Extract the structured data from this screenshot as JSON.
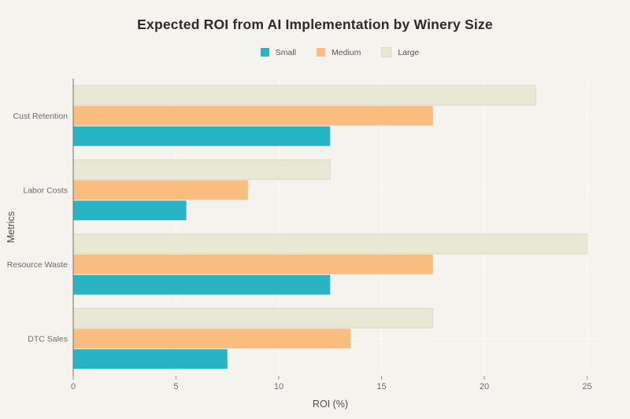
{
  "chart_data": {
    "type": "bar",
    "orientation": "horizontal",
    "title": "Expected ROI from AI Implementation by Winery Size",
    "categories": [
      "Cust Retention",
      "Labor Costs",
      "Resource Waste",
      "DTC Sales"
    ],
    "series": [
      {
        "name": "Small",
        "color": "#27b5c5",
        "values": [
          12.5,
          5.5,
          12.5,
          7.5
        ]
      },
      {
        "name": "Medium",
        "color": "#f9bd80",
        "values": [
          17.5,
          8.5,
          17.5,
          13.5
        ]
      },
      {
        "name": "Large",
        "color": "#e9e8d4",
        "border": "#dbdac5",
        "values": [
          22.5,
          12.5,
          25,
          17.5
        ]
      }
    ],
    "xlabel": "ROI (%)",
    "ylabel": "Metrics",
    "xlim": [
      0,
      25
    ],
    "xticks": [
      0,
      5,
      10,
      15,
      20,
      25
    ],
    "grid": true,
    "legend_position": "top-center",
    "theme": {
      "background": "#f4f3ed",
      "grid_color": "#fbfaf5",
      "axis_line_color": "#6f6f6f",
      "tick_color": "#999999",
      "tick_label_color": "#6b6b6b",
      "category_label_color": "#6b6b6b",
      "title_color": "#2b2b2b",
      "axis_title_color": "#4a4a4a"
    }
  }
}
